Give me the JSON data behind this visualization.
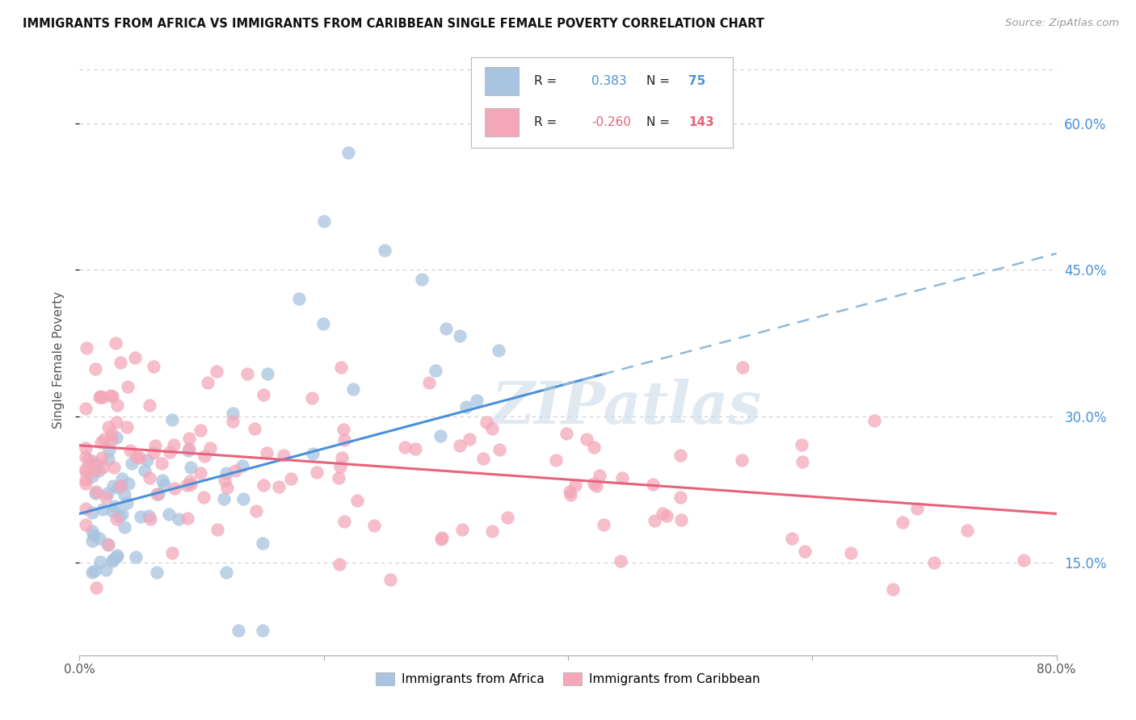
{
  "title": "IMMIGRANTS FROM AFRICA VS IMMIGRANTS FROM CARIBBEAN SINGLE FEMALE POVERTY CORRELATION CHART",
  "source": "Source: ZipAtlas.com",
  "ylabel": "Single Female Poverty",
  "yticks": [
    0.15,
    0.3,
    0.45,
    0.6
  ],
  "ytick_labels": [
    "15.0%",
    "30.0%",
    "45.0%",
    "60.0%"
  ],
  "xlim": [
    0.0,
    0.8
  ],
  "ylim": [
    0.055,
    0.66
  ],
  "africa_R": 0.383,
  "africa_N": 75,
  "caribbean_R": -0.26,
  "caribbean_N": 143,
  "africa_color": "#A8C4E0",
  "caribbean_color": "#F4A7B9",
  "africa_line_color": "#4A90D9",
  "caribbean_line_color": "#E8637A",
  "dashed_line_color": "#90B8D8",
  "watermark_text": "ZIPatlas",
  "background_color": "#FFFFFF",
  "grid_color": "#CCCCCC",
  "legend_africa_label": "Immigrants from Africa",
  "legend_carib_label": "Immigrants from Caribbean"
}
